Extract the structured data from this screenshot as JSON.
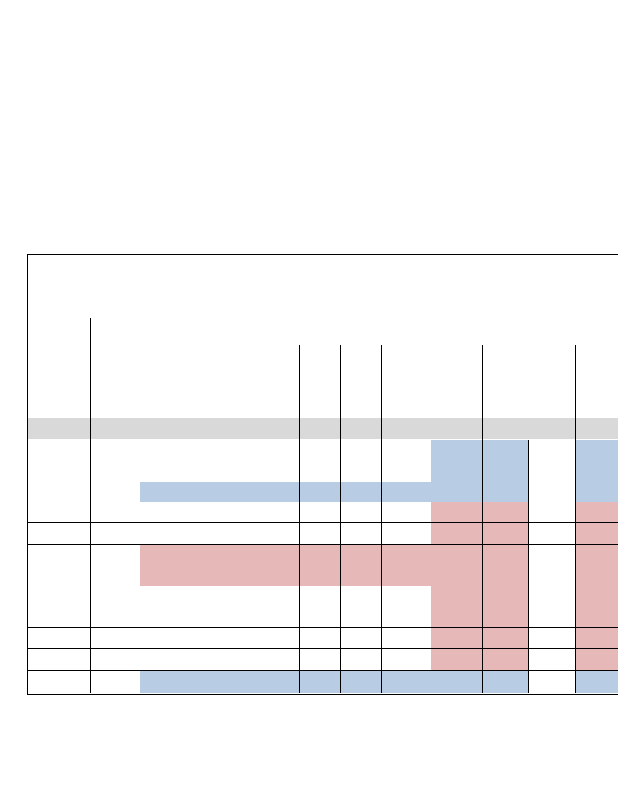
{
  "colors": {
    "background": "#ffffff",
    "rule": "#000000",
    "header_band": "#d9d9d9",
    "blue_highlight": "#b8cce4",
    "red_highlight": "#e6b8b7"
  },
  "table": {
    "header_rows": 1,
    "body_rows": 7,
    "highlight_legend": [
      "blue_highlight",
      "red_highlight"
    ]
  }
}
